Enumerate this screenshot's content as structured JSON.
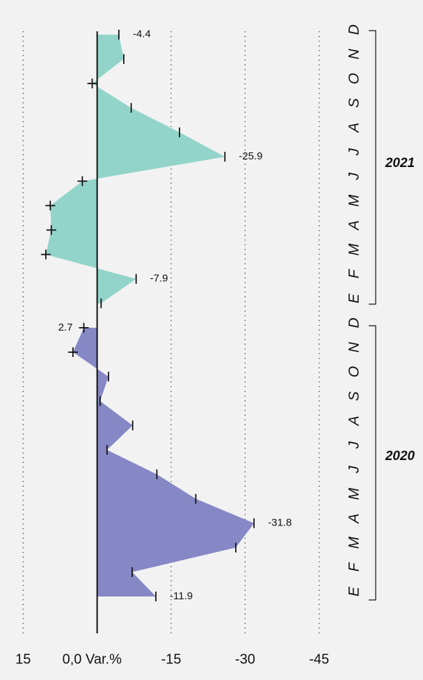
{
  "chart_data": {
    "type": "area",
    "categories": [
      "E",
      "F",
      "M",
      "A",
      "M",
      "J",
      "J",
      "A",
      "S",
      "O",
      "N",
      "D",
      "E",
      "F",
      "M",
      "A",
      "M",
      "J",
      "J",
      "A",
      "S",
      "O",
      "N",
      "D"
    ],
    "series": [
      {
        "name": "2020",
        "color": "#8688c6",
        "values": [
          -11.9,
          -7.1,
          -28.1,
          -31.8,
          -20.0,
          -12.1,
          -2.0,
          -7.2,
          -0.6,
          -2.3,
          4.9,
          2.7,
          null,
          null,
          null,
          null,
          null,
          null,
          null,
          null,
          null,
          null,
          null,
          null
        ],
        "value_labels": [
          "-11.9",
          null,
          null,
          "-31.8",
          null,
          null,
          null,
          null,
          null,
          null,
          null,
          "2.7",
          null,
          null,
          null,
          null,
          null,
          null,
          null,
          null,
          null,
          null,
          null,
          null
        ]
      },
      {
        "name": "2021",
        "color": "#93d4ca",
        "values": [
          null,
          null,
          null,
          null,
          null,
          null,
          null,
          null,
          null,
          null,
          null,
          null,
          -0.8,
          -7.9,
          10.4,
          9.3,
          9.5,
          3.0,
          -25.9,
          -16.7,
          -6.9,
          1.0,
          -5.4,
          -4.4
        ],
        "value_labels": [
          null,
          null,
          null,
          null,
          null,
          null,
          null,
          null,
          null,
          null,
          null,
          null,
          null,
          "-7.9",
          null,
          null,
          null,
          null,
          "-25.9",
          null,
          null,
          null,
          null,
          "-4.4"
        ]
      }
    ],
    "xlim": [
      18,
      -48
    ],
    "xticks": [
      15,
      {
        "value": 0,
        "label": "0,0 Var.%"
      },
      -15,
      -30,
      -45
    ],
    "grid": true
  }
}
